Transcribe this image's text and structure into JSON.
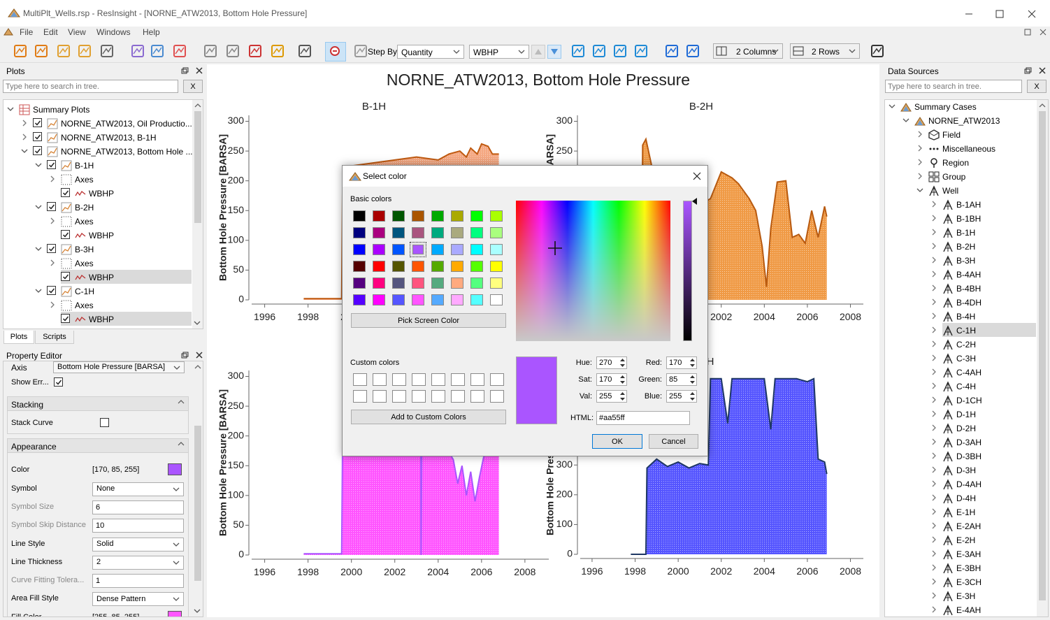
{
  "window": {
    "title": "MultiPlt_Wells.rsp - ResInsight - [NORNE_ATW2013, Bottom Hole Pressure]"
  },
  "menu": [
    "File",
    "Edit",
    "View",
    "Windows",
    "Help"
  ],
  "toolbar": {
    "step_by": "Step By",
    "step_by_value": "Quantity",
    "quantity": "WBHP",
    "columns": "2 Columns",
    "rows": "2 Rows"
  },
  "plots_panel": {
    "title": "Plots",
    "search": "Type here to search in tree.",
    "clear": "X",
    "tree": {
      "label": "Summary Plots",
      "icon": "folder",
      "children": [
        {
          "label": "NORNE_ATW2013, Oil Productio...",
          "checked": true,
          "icon": "plot",
          "expandable": true
        },
        {
          "label": "NORNE_ATW2013, B-1H",
          "checked": true,
          "icon": "plot",
          "expandable": true
        },
        {
          "label": "NORNE_ATW2013, Bottom Hole ...",
          "checked": true,
          "icon": "plot",
          "children": [
            {
              "label": "B-1H",
              "checked": true,
              "icon": "plot",
              "children": [
                {
                  "label": "Axes",
                  "icon": "axes",
                  "expandable": true
                },
                {
                  "label": "WBHP",
                  "checked": true,
                  "icon": "curve"
                }
              ]
            },
            {
              "label": "B-2H",
              "checked": true,
              "icon": "plot",
              "children": [
                {
                  "label": "Axes",
                  "icon": "axes",
                  "expandable": true
                },
                {
                  "label": "WBHP",
                  "checked": true,
                  "icon": "curve"
                }
              ]
            },
            {
              "label": "B-3H",
              "checked": true,
              "icon": "plot",
              "children": [
                {
                  "label": "Axes",
                  "icon": "axes",
                  "expandable": true
                },
                {
                  "label": "WBHP",
                  "checked": true,
                  "icon": "curve",
                  "selected": true
                }
              ]
            },
            {
              "label": "C-1H",
              "checked": true,
              "icon": "plot",
              "children": [
                {
                  "label": "Axes",
                  "icon": "axes",
                  "expandable": true
                },
                {
                  "label": "WBHP",
                  "checked": true,
                  "icon": "curve",
                  "selected": true
                }
              ]
            }
          ]
        }
      ]
    },
    "tabs": [
      "Plots",
      "Scripts"
    ]
  },
  "property_editor": {
    "title": "Property Editor",
    "axis_label": "Axis",
    "axis_value": "Bottom Hole Pressure [BARSA]",
    "show_errors_label": "Show Err...",
    "show_errors": true,
    "groups": [
      {
        "title": "Stacking",
        "fields": [
          {
            "label": "Stack Curve",
            "checkbox": false
          }
        ]
      },
      {
        "title": "Appearance",
        "fields": [
          {
            "label": "Color",
            "value": "[170, 85, 255]",
            "swatch": "#aa55ff"
          },
          {
            "label": "Symbol",
            "combo": "None"
          },
          {
            "label": "Symbol Size",
            "input": 6,
            "disabled": true
          },
          {
            "label": "Symbol Skip Distance",
            "input": 10,
            "disabled": true
          },
          {
            "label": "Line Style",
            "combo": "Solid"
          },
          {
            "label": "Line Thickness",
            "combo": 2
          },
          {
            "label": "Curve Fitting Tolera...",
            "input": 1,
            "disabled": true
          },
          {
            "label": "Area Fill Style",
            "combo": "Dense Pattern"
          },
          {
            "label": "Fill Color",
            "value": "[255, 85, 255]",
            "swatch": "#ff55ff"
          }
        ]
      }
    ]
  },
  "data_sources": {
    "title": "Data Sources",
    "search": "Type here to search in tree.",
    "clear": "X",
    "tree": {
      "label": "Summary Cases",
      "icon": "case",
      "children": [
        {
          "label": "NORNE_ATW2013",
          "icon": "case",
          "children": [
            {
              "label": "Field",
              "icon": "field",
              "expandable": true
            },
            {
              "label": "Miscellaneous",
              "icon": "misc",
              "expandable": true
            },
            {
              "label": "Region",
              "icon": "region",
              "expandable": true
            },
            {
              "label": "Group",
              "icon": "group",
              "expandable": true
            },
            {
              "label": "Well",
              "icon": "well",
              "children": [
                {
                  "label": "B-1AH",
                  "icon": "well",
                  "expandable": true
                },
                {
                  "label": "B-1BH",
                  "icon": "well",
                  "expandable": true
                },
                {
                  "label": "B-1H",
                  "icon": "well",
                  "expandable": true
                },
                {
                  "label": "B-2H",
                  "icon": "well",
                  "expandable": true
                },
                {
                  "label": "B-3H",
                  "icon": "well",
                  "expandable": true
                },
                {
                  "label": "B-4AH",
                  "icon": "well",
                  "expandable": true
                },
                {
                  "label": "B-4BH",
                  "icon": "well",
                  "expandable": true
                },
                {
                  "label": "B-4DH",
                  "icon": "well",
                  "expandable": true
                },
                {
                  "label": "B-4H",
                  "icon": "well",
                  "expandable": true
                },
                {
                  "label": "C-1H",
                  "icon": "well",
                  "expandable": true,
                  "selected": true
                },
                {
                  "label": "C-2H",
                  "icon": "well",
                  "expandable": true
                },
                {
                  "label": "C-3H",
                  "icon": "well",
                  "expandable": true
                },
                {
                  "label": "C-4AH",
                  "icon": "well",
                  "expandable": true
                },
                {
                  "label": "C-4H",
                  "icon": "well",
                  "expandable": true
                },
                {
                  "label": "D-1CH",
                  "icon": "well",
                  "expandable": true
                },
                {
                  "label": "D-1H",
                  "icon": "well",
                  "expandable": true
                },
                {
                  "label": "D-2H",
                  "icon": "well",
                  "expandable": true
                },
                {
                  "label": "D-3AH",
                  "icon": "well",
                  "expandable": true
                },
                {
                  "label": "D-3BH",
                  "icon": "well",
                  "expandable": true
                },
                {
                  "label": "D-3H",
                  "icon": "well",
                  "expandable": true
                },
                {
                  "label": "D-4AH",
                  "icon": "well",
                  "expandable": true
                },
                {
                  "label": "D-4H",
                  "icon": "well",
                  "expandable": true
                },
                {
                  "label": "E-1H",
                  "icon": "well",
                  "expandable": true
                },
                {
                  "label": "E-2AH",
                  "icon": "well",
                  "expandable": true
                },
                {
                  "label": "E-2H",
                  "icon": "well",
                  "expandable": true
                },
                {
                  "label": "E-3AH",
                  "icon": "well",
                  "expandable": true
                },
                {
                  "label": "E-3BH",
                  "icon": "well",
                  "expandable": true
                },
                {
                  "label": "E-3CH",
                  "icon": "well",
                  "expandable": true
                },
                {
                  "label": "E-3H",
                  "icon": "well",
                  "expandable": true
                },
                {
                  "label": "E-4AH",
                  "icon": "well",
                  "expandable": true
                }
              ]
            }
          ]
        }
      ]
    }
  },
  "plot_window_title": "NORNE_ATW2013, Bottom Hole Pressure",
  "chart_data": [
    {
      "type": "area",
      "title": "B-1H",
      "ylabel": "Bottom Hole Pressure [BARSA]",
      "x": [
        1997.8,
        1999.55,
        1999.6,
        2000,
        2001,
        2002,
        2003,
        2004,
        2004.5,
        2005,
        2005.3,
        2005.5,
        2005.8,
        2006,
        2006.3,
        2006.5,
        2006.8
      ],
      "values": [
        2,
        2,
        222,
        225,
        230,
        235,
        240,
        235,
        245,
        250,
        240,
        255,
        245,
        262,
        258,
        245,
        245
      ],
      "line_color": "#c05a10",
      "fill_color": "#f5a882",
      "xlim": [
        1995.4,
        2009.1
      ],
      "ylim": [
        0,
        310
      ],
      "xticks": [
        1996,
        1998,
        2000,
        2002,
        2004,
        2006,
        2008
      ],
      "yticks": [
        0,
        50,
        100,
        150,
        200,
        250,
        300
      ]
    },
    {
      "type": "area",
      "title": "B-2H",
      "ylabel": "Bottom Hole Pressure [BARSA]",
      "x": [
        1998.2,
        1998.3,
        1998.35,
        1998.5,
        1998.8,
        1999.2,
        2000,
        2001,
        2001.5,
        2002,
        2002.5,
        2002.8,
        2003,
        2003.3,
        2003.6,
        2003.9,
        2004.1,
        2004.3,
        2004.6,
        2005,
        2005.3,
        2005.6,
        2005.9,
        2006.2,
        2006.5,
        2006.8,
        2006.9
      ],
      "values": [
        0,
        0,
        260,
        270,
        220,
        190,
        180,
        160,
        170,
        215,
        205,
        195,
        185,
        170,
        150,
        90,
        22,
        120,
        198,
        200,
        105,
        110,
        95,
        150,
        105,
        157,
        140
      ],
      "line_color": "#b85a10",
      "fill_color": "#f09a45",
      "xlim": [
        1995.45,
        2008.6
      ],
      "ylim": [
        0,
        310
      ],
      "xticks": [
        1996,
        1998,
        2000,
        2002,
        2004,
        2006,
        2008
      ],
      "yticks": [
        0,
        50,
        100,
        150,
        200,
        250,
        300
      ]
    },
    {
      "type": "area",
      "ylabel": "Bottom Hole Pressure [BARSA]",
      "x": [
        1997.8,
        1999.55,
        1999.6,
        2000,
        2001,
        2002,
        2003,
        2003.2,
        2003.21,
        2003.25,
        2004,
        2004.7,
        2004.9,
        2005.1,
        2005.3,
        2005.5,
        2005.7,
        2005.9,
        2006.1,
        2006.3,
        2006.5,
        2006.8
      ],
      "values": [
        2,
        2,
        225,
        215,
        215,
        210,
        210,
        210,
        0,
        210,
        205,
        160,
        120,
        150,
        100,
        140,
        90,
        130,
        165,
        170,
        225,
        225
      ],
      "line_color": "#aa55ff",
      "fill_color": "#ff55ff",
      "xlim": [
        1995.4,
        2009.1
      ],
      "ylim": [
        0,
        310
      ],
      "xticks": [
        1996,
        1998,
        2000,
        2002,
        2004,
        2006,
        2008
      ],
      "yticks": [
        0,
        50,
        100,
        150,
        200,
        250,
        300
      ]
    },
    {
      "type": "area",
      "title": "H",
      "ylabel": "Bottom Hole Pressure [BARSA]",
      "x": [
        1997.8,
        1998.5,
        1998.55,
        1999,
        1999.5,
        2000,
        2000.5,
        2001,
        2001.4,
        2001.5,
        2002,
        2002.3,
        2002.5,
        2003,
        2003.5,
        2004,
        2004.3,
        2004.5,
        2005,
        2005.5,
        2006,
        2006.3,
        2006.5,
        2006.8,
        2006.9
      ],
      "values": [
        0,
        0,
        290,
        320,
        295,
        310,
        290,
        305,
        300,
        590,
        590,
        440,
        590,
        590,
        590,
        590,
        420,
        590,
        590,
        590,
        580,
        590,
        320,
        310,
        270
      ],
      "line_color": "#1f3864",
      "fill_color": "#5555ff",
      "xlim": [
        1995.45,
        2008.6
      ],
      "ylim": [
        0,
        620
      ],
      "xticks": [
        1996,
        1998,
        2000,
        2002,
        2004,
        2006,
        2008
      ],
      "yticks": [
        0,
        100,
        200,
        300,
        400,
        500,
        600
      ]
    }
  ],
  "color_dialog": {
    "title": "Select color",
    "basic_colors_label": "Basic colors",
    "basic_colors": [
      "#000000",
      "#aa0000",
      "#005500",
      "#aa5500",
      "#00aa00",
      "#aaaa00",
      "#00ff00",
      "#aaff00",
      "#00007f",
      "#aa007f",
      "#00557f",
      "#aa557f",
      "#00aa7f",
      "#aaaa7f",
      "#00ff7f",
      "#aaff7f",
      "#0000ff",
      "#aa00ff",
      "#0055ff",
      "#aa55ff",
      "#00aaff",
      "#aaaaff",
      "#00ffff",
      "#aaffff",
      "#550000",
      "#ff0000",
      "#555500",
      "#ff5500",
      "#55aa00",
      "#ffaa00",
      "#55ff00",
      "#ffff00",
      "#55007f",
      "#ff007f",
      "#55557f",
      "#ff557f",
      "#55aa7f",
      "#ffaa7f",
      "#55ff7f",
      "#ffff7f",
      "#5500ff",
      "#ff00ff",
      "#5555ff",
      "#ff55ff",
      "#55aaff",
      "#ffaaff",
      "#55ffff",
      "#ffffff"
    ],
    "pick_screen": "Pick Screen Color",
    "custom_colors_label": "Custom colors",
    "add_custom": "Add to Custom Colors",
    "fields_left": [
      {
        "label": "Hue:",
        "value": 270
      },
      {
        "label": "Sat:",
        "value": 170
      },
      {
        "label": "Val:",
        "value": 255
      }
    ],
    "fields_right": [
      {
        "label": "Red:",
        "value": 170
      },
      {
        "label": "Green:",
        "value": 85
      },
      {
        "label": "Blue:",
        "value": 255
      }
    ],
    "html_label": "HTML:",
    "html": "#aa55ff",
    "ok": "OK",
    "cancel": "Cancel"
  }
}
